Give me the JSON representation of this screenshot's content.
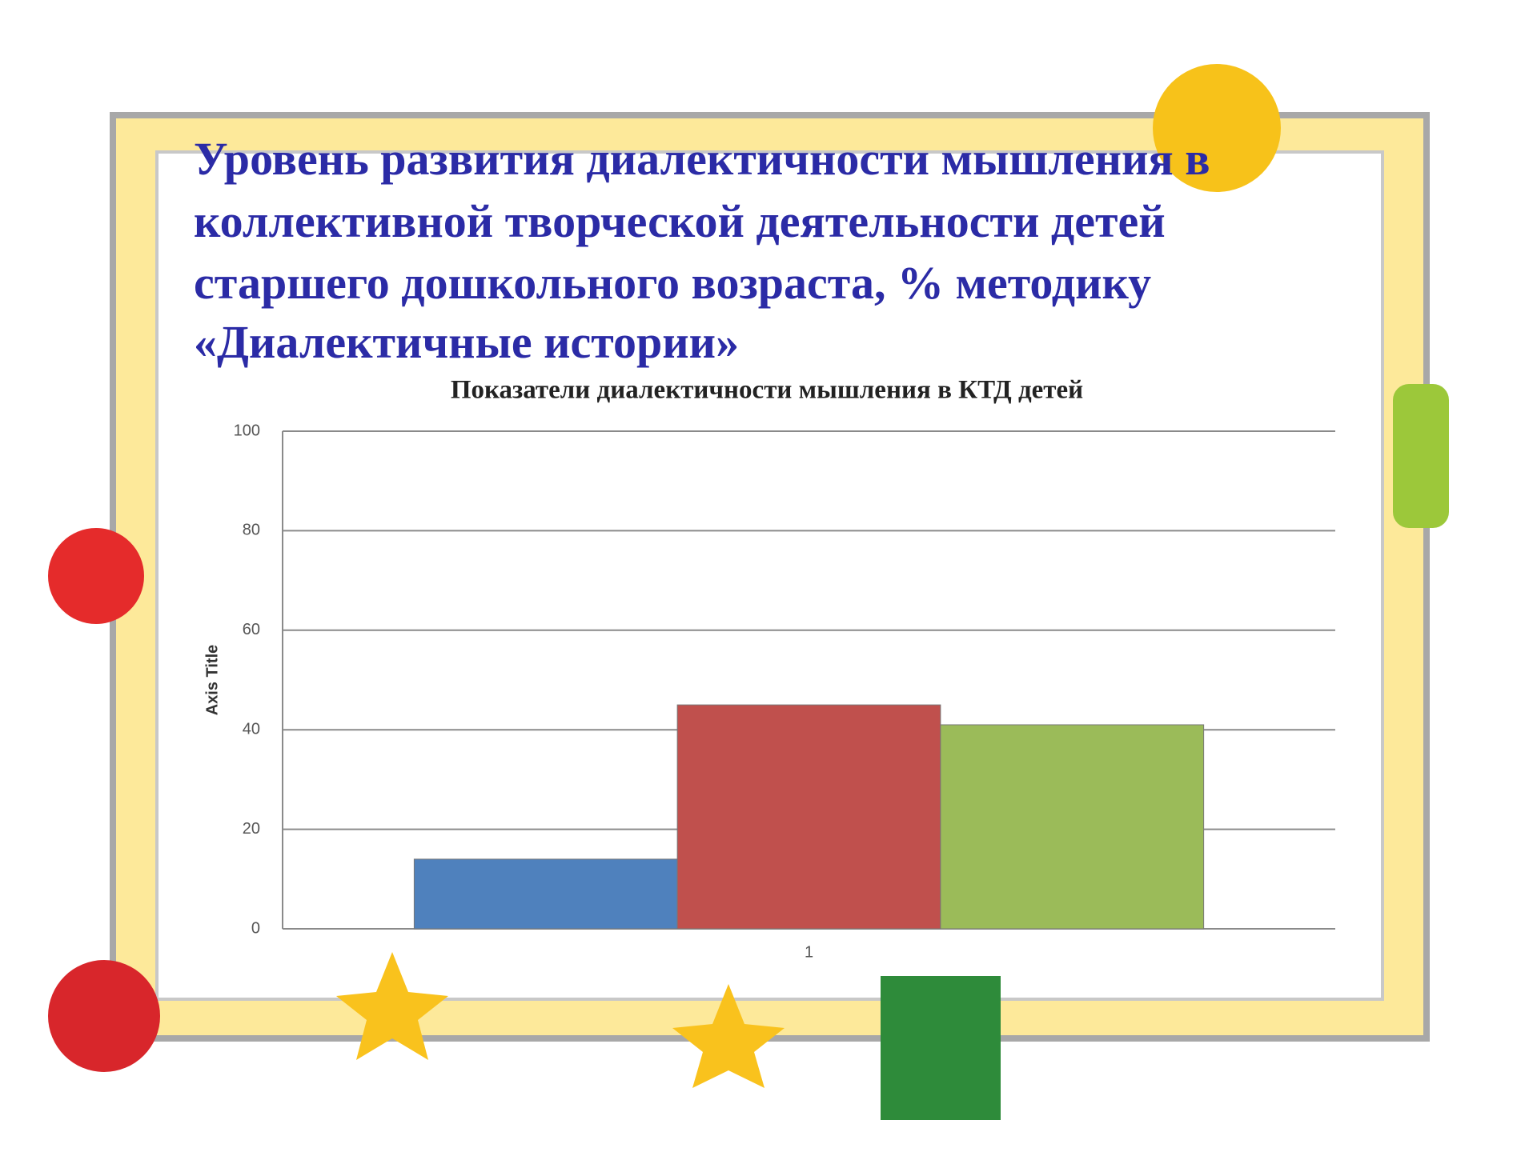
{
  "slide_title": [
    "Уровень развития диалектичности мышления в",
    "коллективной творческой деятельности детей",
    "старшего дошкольного возраста, % методику",
    "«Диалектичные истории»"
  ],
  "chart_data": {
    "type": "bar",
    "title": "Показатели диалектичности мышления в КТД детей",
    "y_label": "Axis Title",
    "categories": [
      "1"
    ],
    "series": [
      {
        "color": "#4f81bd",
        "values": [
          14
        ]
      },
      {
        "color": "#c0504d",
        "values": [
          45
        ]
      },
      {
        "color": "#9bbb59",
        "values": [
          41
        ]
      }
    ],
    "ylim": [
      0,
      100
    ],
    "yticks": [
      0,
      20,
      40,
      60,
      80,
      100
    ],
    "grid": true
  }
}
